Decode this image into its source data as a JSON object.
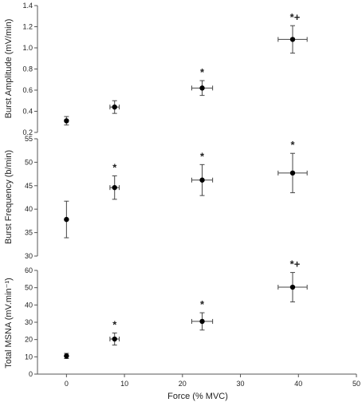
{
  "chart_data": [
    {
      "type": "scatter",
      "ylabel": "Burst Amplitude (mV/min)",
      "ylim": [
        0.2,
        1.4
      ],
      "yticks": [
        "0.2",
        "0.4",
        "0.6",
        "0.8",
        "1.0",
        "1.2",
        "1.4"
      ],
      "xlim": [
        -5,
        50
      ],
      "points": [
        {
          "x": 0,
          "y": 0.31,
          "xerr": 0,
          "yerr": 0.04,
          "annot": ""
        },
        {
          "x": 8.3,
          "y": 0.44,
          "xerr": 0.8,
          "yerr": 0.06,
          "annot": ""
        },
        {
          "x": 23.4,
          "y": 0.62,
          "xerr": 1.8,
          "yerr": 0.07,
          "annot": "*"
        },
        {
          "x": 39,
          "y": 1.08,
          "xerr": 2.5,
          "yerr": 0.13,
          "annot": "*+"
        }
      ]
    },
    {
      "type": "scatter",
      "ylabel": "Burst Frequency (b/min)",
      "ylim": [
        30,
        55
      ],
      "yticks": [
        "30",
        "35",
        "40",
        "45",
        "50",
        "55"
      ],
      "xlim": [
        -5,
        50
      ],
      "points": [
        {
          "x": 0,
          "y": 37.8,
          "xerr": 0,
          "yerr": 3.9,
          "annot": ""
        },
        {
          "x": 8.3,
          "y": 44.6,
          "xerr": 0.8,
          "yerr": 2.5,
          "annot": "*"
        },
        {
          "x": 23.4,
          "y": 46.2,
          "xerr": 1.8,
          "yerr": 3.3,
          "annot": "*"
        },
        {
          "x": 39,
          "y": 47.7,
          "xerr": 2.5,
          "yerr": 4.2,
          "annot": "*"
        }
      ]
    },
    {
      "type": "scatter",
      "ylabel": "Total MSNA (mV.min⁻¹)",
      "ylim": [
        0,
        60
      ],
      "yticks": [
        "0",
        "10",
        "20",
        "30",
        "40",
        "50",
        "60"
      ],
      "xlim": [
        -5,
        50
      ],
      "xticks": [
        "0",
        "10",
        "20",
        "30",
        "40",
        "50"
      ],
      "xlabel": "Force (% MVC)",
      "points": [
        {
          "x": 0,
          "y": 10.5,
          "xerr": 0,
          "yerr": 1.5,
          "annot": ""
        },
        {
          "x": 8.3,
          "y": 20.3,
          "xerr": 0.8,
          "yerr": 3.5,
          "annot": "*"
        },
        {
          "x": 23.4,
          "y": 30.5,
          "xerr": 1.8,
          "yerr": 5.0,
          "annot": "*"
        },
        {
          "x": 39,
          "y": 50.3,
          "xerr": 2.5,
          "yerr": 8.5,
          "annot": "*+"
        }
      ]
    }
  ]
}
